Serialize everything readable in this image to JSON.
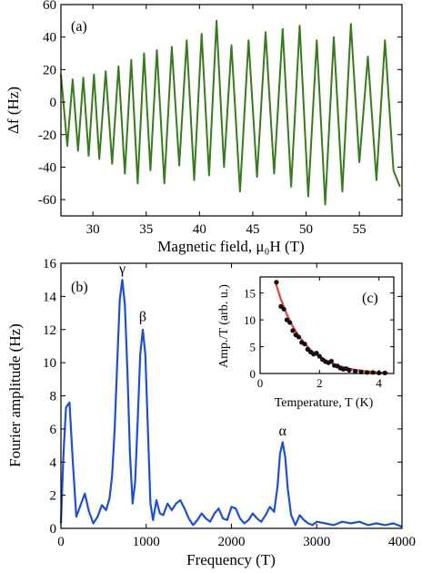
{
  "chart_data": [
    {
      "type": "line",
      "panel_label": "(a)",
      "xlabel": "Magnetic field, μ₀H (T)",
      "ylabel": "Δf (Hz)",
      "xlim": [
        27,
        59
      ],
      "ylim": [
        -70,
        60
      ],
      "x_ticks": [
        30,
        35,
        40,
        45,
        50,
        55
      ],
      "y_ticks": [
        -60,
        -40,
        -20,
        0,
        20,
        40,
        60
      ],
      "grid": false,
      "color": "#3a7a1e",
      "series": [
        {
          "x": [
            27.0,
            27.6,
            28.1,
            28.6,
            29.1,
            29.6,
            30.1,
            30.6,
            31.2,
            31.8,
            32.4,
            33.0,
            33.6,
            34.2,
            34.8,
            35.4,
            36.0,
            36.7,
            37.4,
            38.1,
            38.8,
            39.5,
            40.2,
            40.9,
            41.6,
            42.3,
            43.0,
            43.8,
            44.6,
            45.4,
            46.2,
            47.0,
            47.8,
            48.6,
            49.4,
            50.2,
            51.0,
            51.8,
            52.6,
            53.4,
            54.2,
            55.0,
            55.8,
            56.6,
            57.4,
            58.2,
            58.8
          ],
          "y": [
            17,
            -27,
            14,
            -30,
            15,
            -33,
            17,
            -35,
            19,
            -38,
            22,
            -44,
            26,
            -50,
            30,
            -42,
            32,
            -50,
            34,
            -39,
            38,
            -48,
            42,
            -45,
            50,
            -40,
            35,
            -55,
            38,
            -46,
            43,
            -44,
            45,
            -52,
            47,
            -58,
            38,
            -63,
            40,
            -55,
            48,
            -37,
            28,
            -48,
            38,
            -42,
            -52
          ]
        }
      ]
    },
    {
      "type": "line",
      "panel_label": "(b)",
      "xlabel": "Frequency (T)",
      "ylabel": "Fourier amplitude (Hz)",
      "xlim": [
        0,
        4000
      ],
      "ylim": [
        0,
        16
      ],
      "x_ticks": [
        0,
        1000,
        2000,
        3000,
        4000
      ],
      "y_ticks": [
        0,
        2,
        4,
        6,
        8,
        10,
        12,
        14,
        16
      ],
      "grid": false,
      "color": "#1f4fd1",
      "annotations": [
        {
          "text": "γ",
          "x": 720,
          "y": 15.4
        },
        {
          "text": "β",
          "x": 960,
          "y": 12.5
        },
        {
          "text": "α",
          "x": 2600,
          "y": 5.6
        }
      ],
      "series": [
        {
          "x": [
            0,
            30,
            60,
            100,
            140,
            180,
            230,
            280,
            330,
            380,
            430,
            480,
            530,
            570,
            600,
            630,
            660,
            690,
            720,
            750,
            780,
            810,
            840,
            870,
            900,
            930,
            960,
            990,
            1020,
            1050,
            1080,
            1120,
            1160,
            1200,
            1250,
            1300,
            1350,
            1400,
            1450,
            1500,
            1550,
            1600,
            1650,
            1700,
            1750,
            1800,
            1850,
            1900,
            1950,
            2000,
            2050,
            2100,
            2150,
            2200,
            2250,
            2300,
            2350,
            2400,
            2450,
            2500,
            2540,
            2570,
            2600,
            2630,
            2660,
            2700,
            2750,
            2800,
            2850,
            2900,
            2950,
            3000,
            3100,
            3200,
            3300,
            3400,
            3500,
            3600,
            3700,
            3800,
            3900,
            4000
          ],
          "y": [
            0.3,
            4.5,
            7.3,
            7.6,
            4.0,
            0.7,
            1.4,
            2.1,
            1.0,
            0.3,
            0.7,
            1.4,
            1.1,
            1.8,
            3.2,
            6.0,
            10.0,
            13.8,
            15.0,
            13.5,
            9.5,
            4.5,
            1.5,
            2.8,
            6.5,
            10.5,
            12.0,
            10.5,
            6.0,
            1.5,
            0.5,
            1.7,
            0.9,
            0.8,
            1.5,
            1.1,
            1.5,
            1.7,
            1.2,
            0.6,
            0.2,
            0.5,
            0.9,
            0.6,
            0.4,
            0.9,
            1.2,
            0.6,
            0.5,
            1.3,
            1.2,
            0.6,
            0.3,
            0.5,
            0.9,
            0.6,
            0.4,
            0.8,
            1.3,
            1.0,
            2.5,
            4.5,
            5.2,
            4.3,
            2.4,
            0.8,
            0.2,
            0.8,
            0.5,
            0.3,
            0.2,
            0.4,
            0.3,
            0.2,
            0.4,
            0.3,
            0.4,
            0.2,
            0.3,
            0.2,
            0.3,
            0.1
          ]
        }
      ]
    },
    {
      "type": "scatter",
      "panel_label": "(c)",
      "xlabel": "Temperature, T (K)",
      "ylabel": "Amp./T (arb. u.)",
      "xlim": [
        0,
        4.5
      ],
      "ylim": [
        0,
        18
      ],
      "x_ticks": [
        0,
        2,
        4
      ],
      "y_ticks": [
        0,
        5,
        10,
        15
      ],
      "grid": false,
      "point_color": "#111111",
      "fit_color": "#e8413a",
      "series": [
        {
          "name": "data",
          "x": [
            0.55,
            0.7,
            0.8,
            0.9,
            1.0,
            1.1,
            1.2,
            1.3,
            1.4,
            1.5,
            1.6,
            1.7,
            1.8,
            1.9,
            2.0,
            2.1,
            2.2,
            2.3,
            2.4,
            2.5,
            2.6,
            2.7,
            2.8,
            2.9,
            3.0,
            3.2,
            3.4,
            3.6,
            3.8,
            4.0,
            4.2
          ],
          "y": [
            17.0,
            12.5,
            12.0,
            10.0,
            9.5,
            8.0,
            7.2,
            6.8,
            5.8,
            5.5,
            4.5,
            4.0,
            3.6,
            3.8,
            3.2,
            2.6,
            2.2,
            2.0,
            2.3,
            1.5,
            1.4,
            1.0,
            0.8,
            0.9,
            0.6,
            0.4,
            0.3,
            0.2,
            0.2,
            0.1,
            0.1
          ]
        },
        {
          "name": "fit",
          "type": "line",
          "x": [
            0.5,
            0.7,
            0.9,
            1.1,
            1.3,
            1.5,
            1.7,
            1.9,
            2.1,
            2.3,
            2.5,
            2.7,
            2.9,
            3.1,
            3.3,
            3.5,
            3.7,
            3.9,
            4.1,
            4.3
          ],
          "y": [
            17.3,
            13.8,
            11.0,
            8.8,
            7.0,
            5.6,
            4.4,
            3.5,
            2.8,
            2.2,
            1.7,
            1.35,
            1.05,
            0.8,
            0.6,
            0.45,
            0.35,
            0.25,
            0.18,
            0.12
          ]
        }
      ]
    }
  ]
}
